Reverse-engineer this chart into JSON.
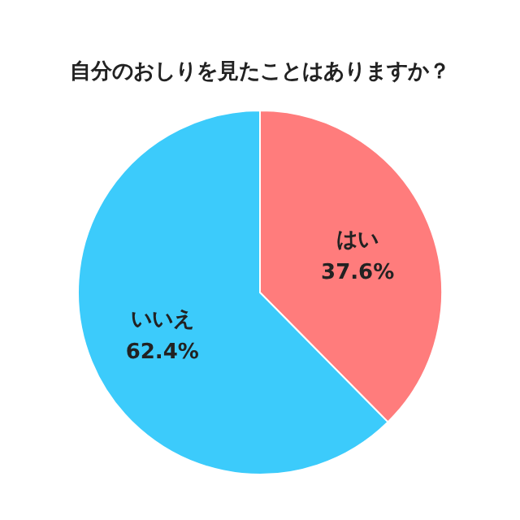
{
  "chart_data": {
    "type": "pie",
    "title": "自分のおしりを見たことはありますか？",
    "categories": [
      "はい",
      "いいえ"
    ],
    "values": [
      37.6,
      62.4
    ],
    "colors": [
      "#ff7c7c",
      "#3ccbfb"
    ],
    "value_labels": [
      "37.6%",
      "62.4%"
    ]
  }
}
